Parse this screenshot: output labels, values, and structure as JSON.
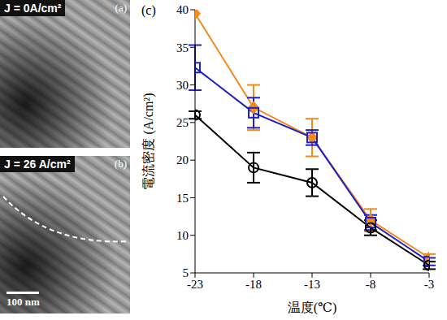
{
  "images": [
    {
      "label": "(a)",
      "caption": "J = 0A/cm²"
    },
    {
      "label": "(b)",
      "caption": "J = 26 A/cm²",
      "scale_bar": "100 nm"
    }
  ],
  "chart_data": {
    "type": "line",
    "annotations": [
      "(c)"
    ],
    "x_label": "温度(℃)",
    "y_label": "電流密度 (A/cm²)",
    "x": [
      -23,
      -18,
      -13,
      -8,
      -3
    ],
    "xlim": [
      -23,
      -3
    ],
    "xticks": [
      -23,
      -18,
      -13,
      -8,
      -3
    ],
    "ylim": [
      5,
      40
    ],
    "yticks": [
      5,
      10,
      15,
      20,
      25,
      30,
      35,
      40
    ],
    "grid": false,
    "series": [
      {
        "color": "#f08c1e",
        "marker": "diamond",
        "values": [
          39.5,
          27,
          23,
          12,
          7
        ],
        "errors": [
          0,
          3,
          2.5,
          1.5,
          0.5
        ]
      },
      {
        "color": "#1f1fc8",
        "marker": "square",
        "values": [
          32.3,
          26.3,
          23,
          11.7,
          6.5
        ],
        "errors": [
          3,
          2,
          1,
          1,
          0.5
        ]
      },
      {
        "color": "#000000",
        "marker": "circle",
        "values": [
          26,
          19,
          17,
          11,
          6
        ],
        "errors": [
          0.5,
          2,
          1.8,
          1,
          0.5
        ]
      }
    ]
  }
}
